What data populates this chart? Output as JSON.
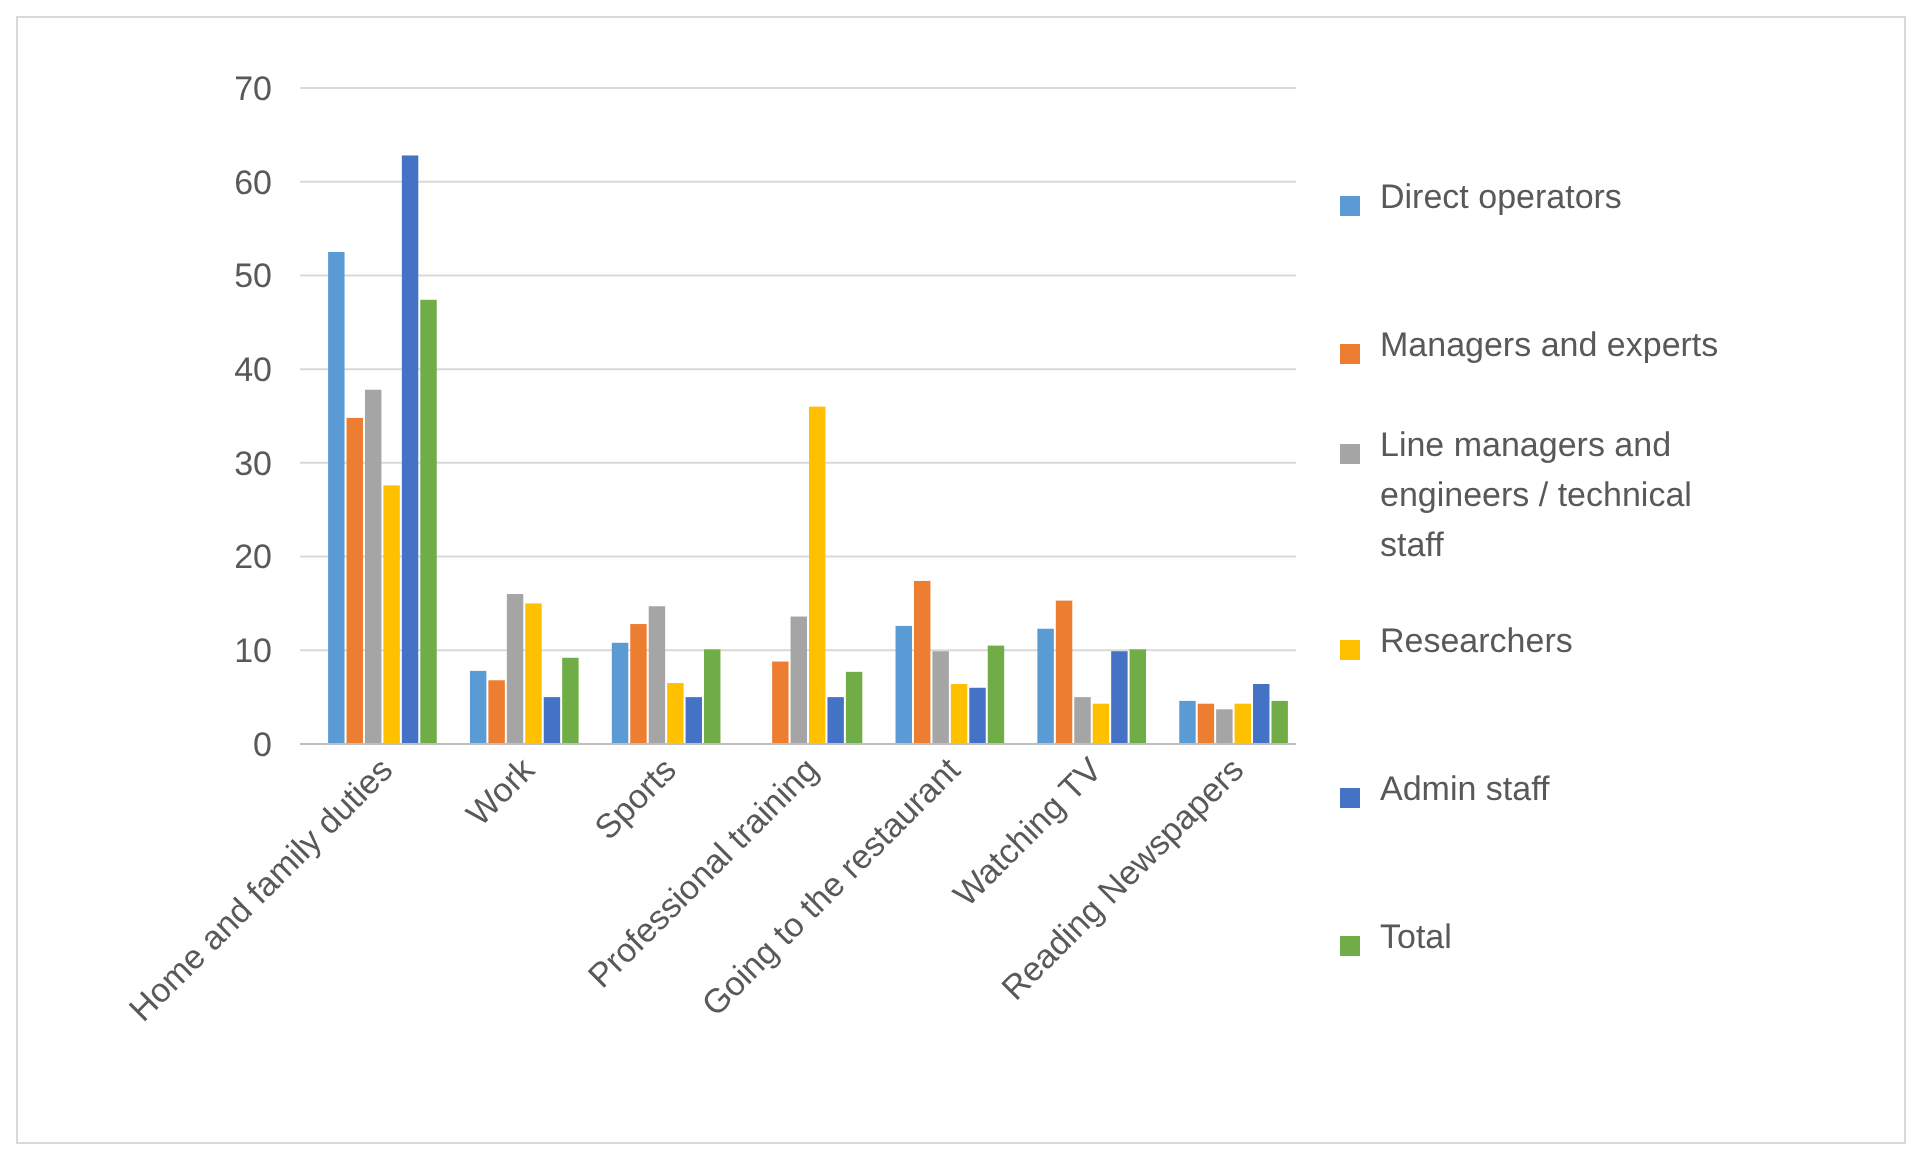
{
  "chart_data": {
    "type": "bar",
    "categories": [
      "Home and family duties",
      "Work",
      "Sports",
      "Professional training",
      "Going to the restaurant",
      "Watching TV",
      "Reading Newspapers"
    ],
    "series": [
      {
        "name": "Direct operators",
        "color": "#5b9bd5",
        "values": [
          52.5,
          7.8,
          10.8,
          null,
          12.6,
          12.3,
          4.6
        ]
      },
      {
        "name": "Managers and experts",
        "color": "#ed7d31",
        "values": [
          34.8,
          6.8,
          12.8,
          8.8,
          17.4,
          15.3,
          4.3
        ]
      },
      {
        "name": "Line managers and engineers / technical staff",
        "color": "#a5a5a5",
        "values": [
          37.8,
          16,
          14.7,
          13.6,
          9.9,
          5,
          3.7
        ]
      },
      {
        "name": "Researchers",
        "color": "#ffc000",
        "values": [
          27.6,
          15,
          6.5,
          36,
          6.4,
          4.3,
          4.3
        ]
      },
      {
        "name": "Admin staff",
        "color": "#4472c4",
        "values": [
          62.8,
          5,
          5,
          5,
          6,
          9.9,
          6.4
        ]
      },
      {
        "name": "Total",
        "color": "#70ad47",
        "values": [
          47.4,
          9.2,
          10.1,
          7.7,
          10.5,
          10.1,
          4.6
        ]
      }
    ],
    "ylim": [
      0,
      70
    ],
    "yticks": [
      0,
      10,
      20,
      30,
      40,
      50,
      60,
      70
    ],
    "grid": "y",
    "legend": "right"
  }
}
